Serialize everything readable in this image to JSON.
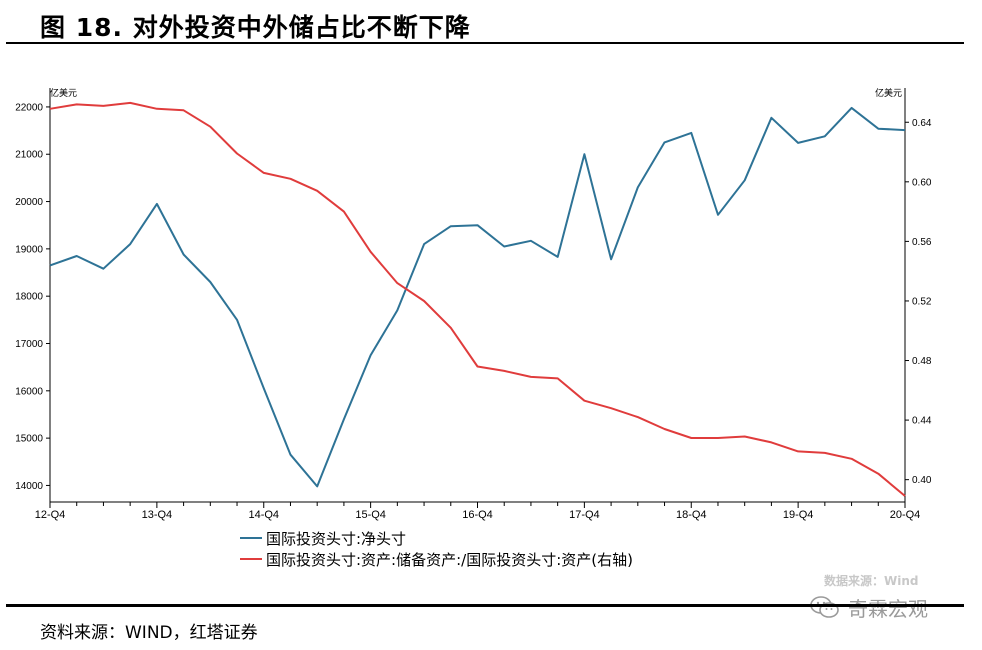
{
  "header": {
    "title": "图 18. 对外投资中外储占比不断下降"
  },
  "footer": {
    "source": "资料来源：WIND，红塔证券",
    "watermark": "数据来源：Wind",
    "brand": "奇霖宏观"
  },
  "chart_data": {
    "type": "line",
    "title": "",
    "left_unit": "亿美元",
    "right_unit": "亿美元",
    "x_tick_labels": [
      "12-Q4",
      "13-Q4",
      "14-Q4",
      "15-Q4",
      "16-Q4",
      "17-Q4",
      "18-Q4",
      "19-Q4",
      "20-Q4"
    ],
    "x": [
      "12-Q4",
      "13-Q1",
      "13-Q2",
      "13-Q3",
      "13-Q4",
      "14-Q1",
      "14-Q2",
      "14-Q3",
      "14-Q4",
      "15-Q1",
      "15-Q2",
      "15-Q3",
      "15-Q4",
      "16-Q1",
      "16-Q2",
      "16-Q3",
      "16-Q4",
      "17-Q1",
      "17-Q2",
      "17-Q3",
      "17-Q4",
      "18-Q1",
      "18-Q2",
      "18-Q3",
      "18-Q4",
      "19-Q1",
      "19-Q2",
      "19-Q3",
      "19-Q4",
      "20-Q1",
      "20-Q2",
      "20-Q3",
      "20-Q4"
    ],
    "y_left": {
      "ticks": [
        14000,
        15000,
        16000,
        17000,
        18000,
        19000,
        20000,
        21000,
        22000
      ],
      "range": [
        13650,
        22400
      ]
    },
    "y_right": {
      "ticks": [
        0.4,
        0.44,
        0.48,
        0.52,
        0.56,
        0.6,
        0.64
      ],
      "range": [
        0.385,
        0.663
      ]
    },
    "series": [
      {
        "name": "国际投资头寸:净头寸",
        "axis": "left",
        "color": "#2e7396",
        "values": [
          18650,
          18850,
          18580,
          19100,
          19950,
          18880,
          18300,
          17500,
          16050,
          14650,
          13980,
          15400,
          16750,
          17700,
          19100,
          19480,
          19500,
          19050,
          19170,
          18830,
          21000,
          18780,
          20300,
          21250,
          21450,
          19720,
          20450,
          21770,
          21240,
          21380,
          21980,
          21540,
          21510
        ]
      },
      {
        "name": "国际投资头寸:资产:储备资产:/国际投资头寸:资产(右轴)",
        "axis": "right",
        "color": "#e03c3c",
        "values": [
          0.649,
          0.652,
          0.651,
          0.653,
          0.649,
          0.648,
          0.637,
          0.619,
          0.606,
          0.602,
          0.594,
          0.58,
          0.553,
          0.532,
          0.52,
          0.502,
          0.476,
          0.473,
          0.469,
          0.468,
          0.453,
          0.448,
          0.442,
          0.434,
          0.428,
          0.428,
          0.429,
          0.425,
          0.419,
          0.418,
          0.414,
          0.404,
          0.389
        ]
      }
    ],
    "grid": false,
    "legend_position": "bottom-left"
  }
}
